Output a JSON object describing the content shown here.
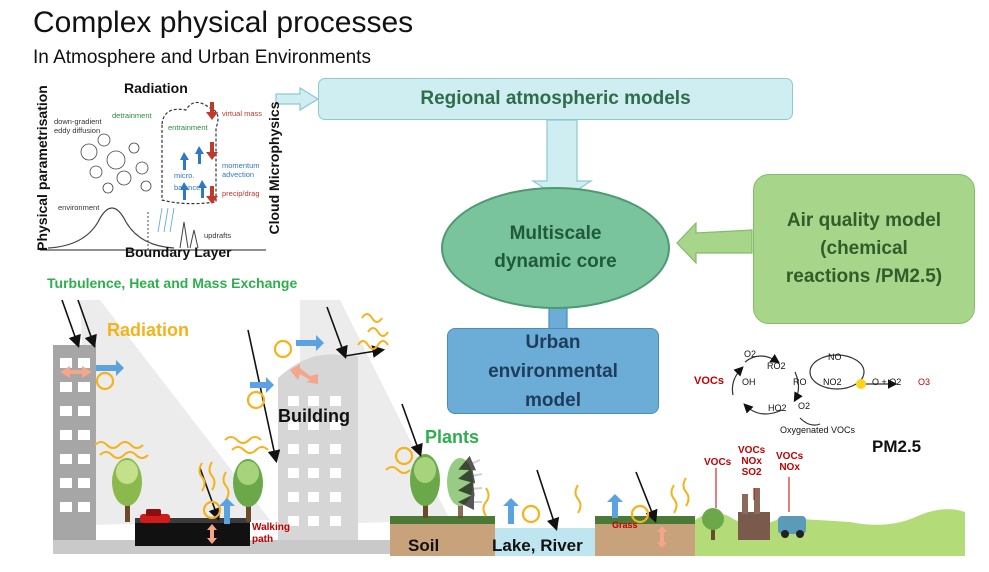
{
  "header": {
    "title": "Complex physical processes",
    "subtitle": "In Atmosphere and Urban Environments"
  },
  "inset": {
    "radiation": "Radiation",
    "left_axis": "Physical parametrisation",
    "right_axis": "Cloud Microphysics",
    "bottom": "Boundary Layer",
    "notes": {
      "down_gradient": "down-gradient",
      "eddy_diffusion": "eddy diffusion",
      "detrainment": "detrainment",
      "entrainment": "entrainment",
      "updrafts": "updrafts",
      "micro": "micro.",
      "balance": "balance",
      "environment": "environment",
      "momentum": "momentum",
      "advection": "advection",
      "precip": "precip/drag",
      "mass": "virtual mass"
    }
  },
  "boxes": {
    "regional": "Regional atmospheric models",
    "multiscale": [
      "Multiscale",
      "dynamic core"
    ],
    "air_quality": [
      "Air quality model",
      "(chemical",
      "reactions /PM2.5)"
    ],
    "urban": [
      "Urban",
      "environmental",
      "model"
    ]
  },
  "scene": {
    "turbulence": "Turbulence, Heat and Mass Exchange",
    "radiation": "Radiation",
    "building": "Building",
    "plants": "Plants",
    "walking_path": [
      "Walking",
      "path"
    ],
    "soil": "Soil",
    "lake_river": "Lake, River",
    "grass": "Grass"
  },
  "chem": {
    "vocs": "VOCs",
    "o2_a": "O2",
    "ro2": "RO2",
    "no": "NO",
    "oh": "OH",
    "ro": "RO",
    "no2": "NO2",
    "o_o2": "O + O2",
    "o3": "O3",
    "ho2": "HO2",
    "o2_b": "O2",
    "oxy": "Oxygenated VOCs",
    "pm25": "PM2.5",
    "src1": [
      "VOCs"
    ],
    "src2": [
      "VOCs",
      "NOx",
      "SO2"
    ],
    "src3": [
      "VOCs",
      "NOx"
    ]
  },
  "colors": {
    "green_text": "#2eaf4e",
    "orange_text": "#f5b21a",
    "red_text": "#c00000",
    "accent_dark_green": "#2f6d4a"
  }
}
